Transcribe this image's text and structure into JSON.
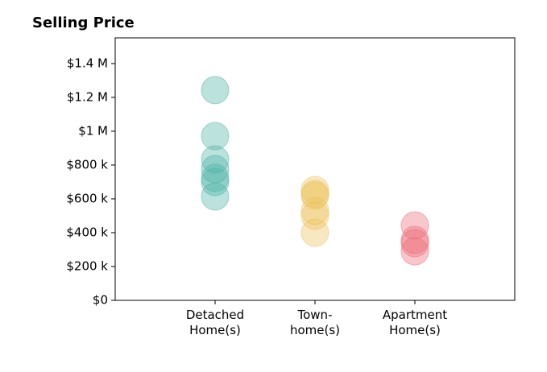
{
  "chart_data": {
    "type": "strip",
    "title": "Selling Price",
    "categories": [
      "Detached\nHome(s)",
      "Town-\nhome(s)",
      "Apartment\nHome(s)"
    ],
    "colors": [
      "#4db3a6",
      "#ecc35c",
      "#ec6b78"
    ],
    "values": [
      [
        1243000,
        971000,
        833000,
        776000,
        724000,
        700000,
        614000
      ],
      [
        652000,
        629000,
        619000,
        529000,
        500000,
        400000
      ],
      [
        443000,
        357000,
        338000,
        290000
      ]
    ],
    "ylim": [
      0,
      1552000
    ],
    "yticks": [
      {
        "value": 0,
        "label": "$0"
      },
      {
        "value": 200000,
        "label": "$200 k"
      },
      {
        "value": 400000,
        "label": "$400 k"
      },
      {
        "value": 600000,
        "label": "$600 k"
      },
      {
        "value": 800000,
        "label": "$800 k"
      },
      {
        "value": 1000000,
        "label": "$1 M"
      },
      {
        "value": 1200000,
        "label": "$1.2 M"
      },
      {
        "value": 1400000,
        "label": "$1.4 M"
      }
    ]
  }
}
